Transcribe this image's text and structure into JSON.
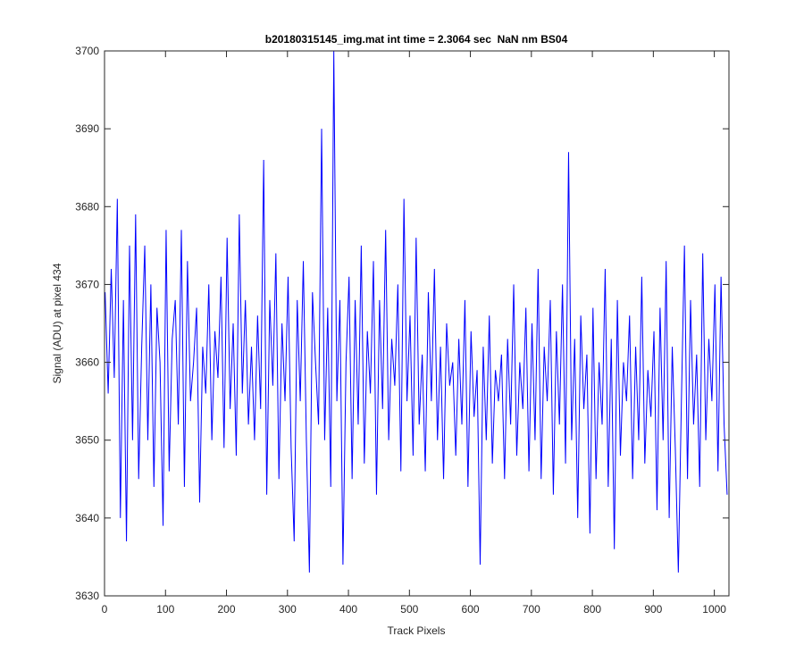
{
  "chart_data": {
    "type": "line",
    "title": "b20180315145_img.mat int time = 2.3064 sec  NaN nm BS04",
    "xlabel": "Track Pixels",
    "ylabel": "Signal (ADU) at pixel 434",
    "xlim": [
      0,
      1024
    ],
    "ylim": [
      3630,
      3700
    ],
    "xticks": [
      0,
      100,
      200,
      300,
      400,
      500,
      600,
      700,
      800,
      900,
      1000
    ],
    "yticks": [
      3630,
      3640,
      3650,
      3660,
      3670,
      3680,
      3690,
      3700
    ],
    "grid": false,
    "x": [
      1,
      6,
      11,
      16,
      21,
      26,
      31,
      36,
      41,
      46,
      51,
      56,
      61,
      66,
      71,
      76,
      81,
      86,
      91,
      96,
      101,
      106,
      111,
      116,
      121,
      126,
      131,
      136,
      141,
      146,
      151,
      156,
      161,
      166,
      171,
      176,
      181,
      186,
      191,
      196,
      201,
      206,
      211,
      216,
      221,
      226,
      231,
      236,
      241,
      246,
      251,
      256,
      261,
      266,
      271,
      276,
      281,
      286,
      291,
      296,
      301,
      306,
      311,
      316,
      321,
      326,
      331,
      336,
      341,
      346,
      351,
      356,
      361,
      366,
      371,
      376,
      381,
      386,
      391,
      396,
      401,
      406,
      411,
      416,
      421,
      426,
      431,
      436,
      441,
      446,
      451,
      456,
      461,
      466,
      471,
      476,
      481,
      486,
      491,
      496,
      501,
      506,
      511,
      516,
      521,
      526,
      531,
      536,
      541,
      546,
      551,
      556,
      561,
      566,
      571,
      576,
      581,
      586,
      591,
      596,
      601,
      606,
      611,
      616,
      621,
      626,
      631,
      636,
      641,
      646,
      651,
      656,
      661,
      666,
      671,
      676,
      681,
      686,
      691,
      696,
      701,
      706,
      711,
      716,
      721,
      726,
      731,
      736,
      741,
      746,
      751,
      756,
      761,
      766,
      771,
      776,
      781,
      786,
      791,
      796,
      801,
      806,
      811,
      816,
      821,
      826,
      831,
      836,
      841,
      846,
      851,
      856,
      861,
      866,
      871,
      876,
      881,
      886,
      891,
      896,
      901,
      906,
      911,
      916,
      921,
      926,
      931,
      936,
      941,
      946,
      951,
      956,
      961,
      966,
      971,
      976,
      981,
      986,
      991,
      996,
      1001,
      1006,
      1011,
      1016,
      1021
    ],
    "series": [
      {
        "name": "Signal",
        "color": "#0000ff",
        "values": [
          3669,
          3656,
          3672,
          3658,
          3681,
          3640,
          3668,
          3637,
          3675,
          3650,
          3679,
          3645,
          3662,
          3675,
          3650,
          3670,
          3644,
          3667,
          3660,
          3639,
          3677,
          3646,
          3663,
          3668,
          3652,
          3677,
          3644,
          3673,
          3655,
          3660,
          3667,
          3642,
          3662,
          3656,
          3670,
          3650,
          3664,
          3658,
          3671,
          3649,
          3676,
          3654,
          3665,
          3648,
          3679,
          3656,
          3668,
          3652,
          3662,
          3650,
          3666,
          3654,
          3686,
          3643,
          3668,
          3657,
          3674,
          3645,
          3665,
          3655,
          3671,
          3649,
          3637,
          3668,
          3655,
          3673,
          3650,
          3633,
          3669,
          3660,
          3652,
          3690,
          3650,
          3667,
          3644,
          3700,
          3655,
          3668,
          3634,
          3660,
          3671,
          3645,
          3668,
          3652,
          3675,
          3647,
          3664,
          3656,
          3673,
          3643,
          3668,
          3654,
          3677,
          3650,
          3663,
          3657,
          3670,
          3646,
          3681,
          3655,
          3666,
          3648,
          3676,
          3652,
          3661,
          3646,
          3669,
          3655,
          3672,
          3650,
          3662,
          3645,
          3665,
          3657,
          3660,
          3648,
          3663,
          3652,
          3668,
          3644,
          3664,
          3653,
          3659,
          3634,
          3662,
          3650,
          3666,
          3647,
          3659,
          3655,
          3661,
          3645,
          3663,
          3652,
          3670,
          3648,
          3660,
          3654,
          3667,
          3646,
          3665,
          3650,
          3672,
          3645,
          3662,
          3655,
          3668,
          3643,
          3664,
          3652,
          3670,
          3647,
          3687,
          3650,
          3663,
          3640,
          3666,
          3654,
          3661,
          3638,
          3667,
          3645,
          3660,
          3652,
          3672,
          3644,
          3663,
          3636,
          3668,
          3648,
          3660,
          3655,
          3666,
          3645,
          3662,
          3650,
          3671,
          3647,
          3659,
          3653,
          3664,
          3641,
          3667,
          3650,
          3673,
          3640,
          3662,
          3649,
          3633,
          3655,
          3675,
          3645,
          3668,
          3652,
          3661,
          3644,
          3674,
          3650,
          3663,
          3655,
          3670,
          3646,
          3671,
          3652,
          3643
        ]
      }
    ]
  }
}
